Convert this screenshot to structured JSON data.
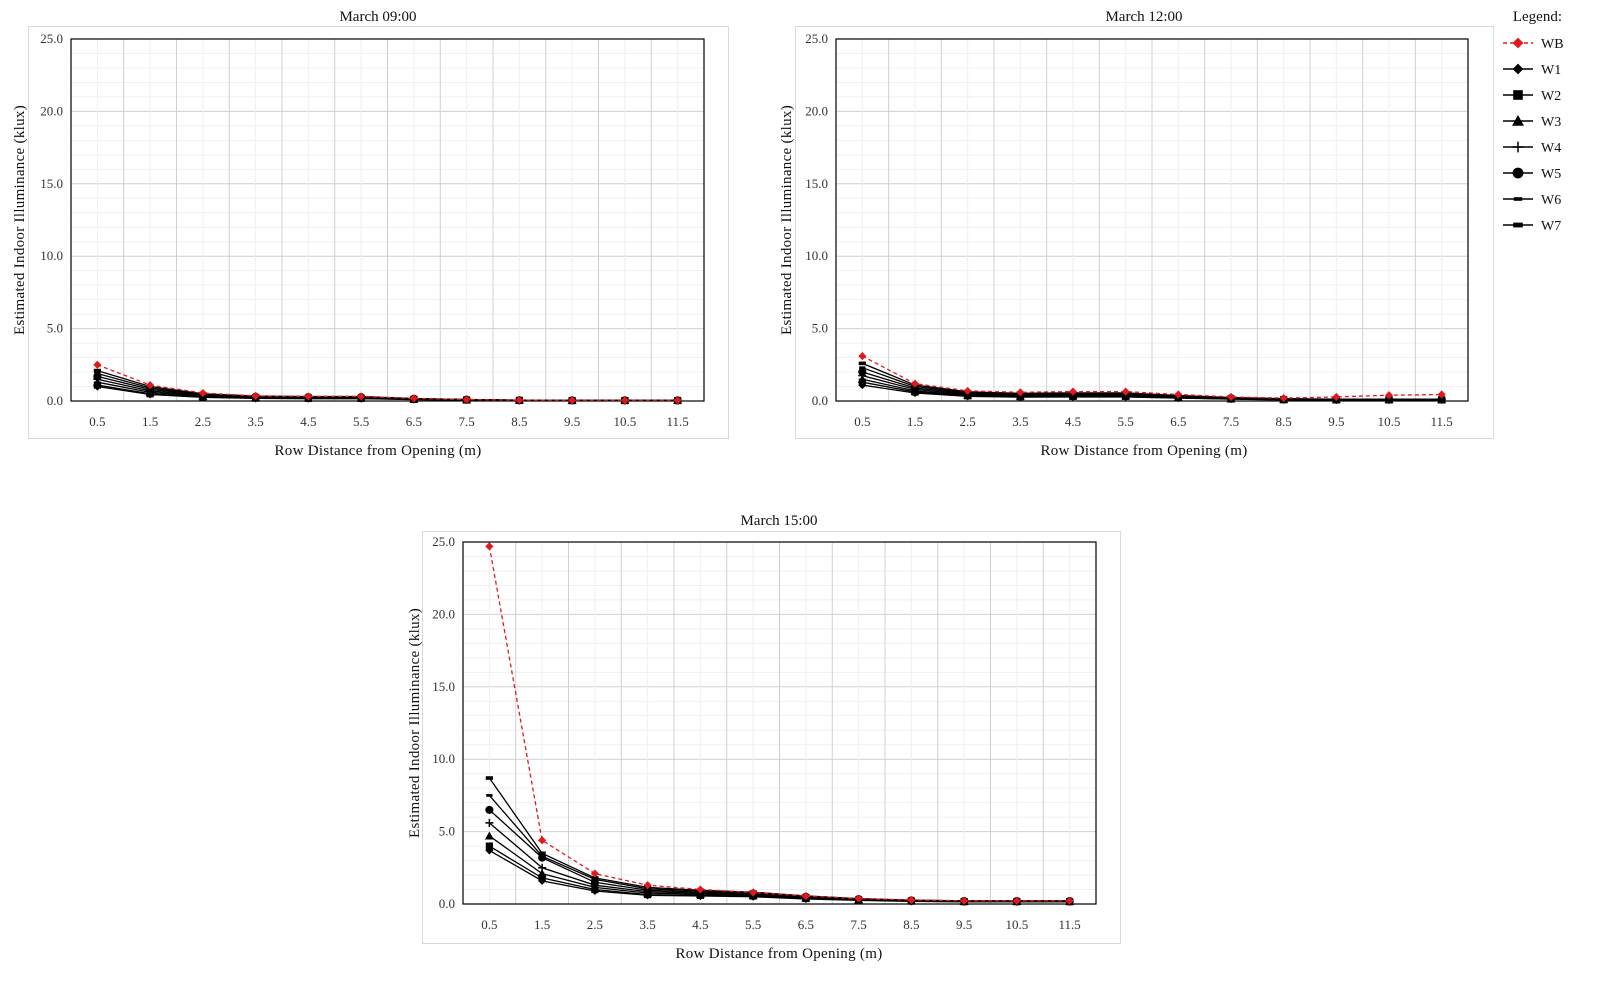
{
  "legend": {
    "title": "Legend:",
    "items": [
      {
        "name": "WB",
        "marker": "diamond",
        "color": "#e0191e",
        "dashed": true
      },
      {
        "name": "W1",
        "marker": "diamond",
        "color": "#000000",
        "dashed": false
      },
      {
        "name": "W2",
        "marker": "square",
        "color": "#000000",
        "dashed": false
      },
      {
        "name": "W3",
        "marker": "triangle",
        "color": "#000000",
        "dashed": false
      },
      {
        "name": "W4",
        "marker": "plus",
        "color": "#000000",
        "dashed": false
      },
      {
        "name": "W5",
        "marker": "circle",
        "color": "#000000",
        "dashed": false
      },
      {
        "name": "W6",
        "marker": "dash",
        "color": "#000000",
        "dashed": false
      },
      {
        "name": "W7",
        "marker": "smallbar",
        "color": "#000000",
        "dashed": false
      }
    ]
  },
  "chart_data": [
    {
      "type": "line",
      "title": "March 09:00",
      "xlabel": "Row Distance from Opening (m)",
      "ylabel": "Estimated Indoor Illuminance (klux)",
      "x": [
        0.5,
        1.5,
        2.5,
        3.5,
        4.5,
        5.5,
        6.5,
        7.5,
        8.5,
        9.5,
        10.5,
        11.5
      ],
      "x_ticks": [
        "0.5",
        "1.5",
        "2.5",
        "3.5",
        "4.5",
        "5.5",
        "6.5",
        "7.5",
        "8.5",
        "9.5",
        "10.5",
        "11.5"
      ],
      "y_ticks": [
        "0.0",
        "5.0",
        "10.0",
        "15.0",
        "20.0",
        "25.0"
      ],
      "ylim": [
        0,
        25
      ],
      "grid": true,
      "series": [
        {
          "name": "WB",
          "values": [
            2.5,
            1.1,
            0.55,
            0.35,
            0.32,
            0.32,
            0.18,
            0.1,
            0.06,
            0.05,
            0.05,
            0.05
          ]
        },
        {
          "name": "W1",
          "values": [
            1.0,
            0.45,
            0.25,
            0.18,
            0.16,
            0.16,
            0.1,
            0.06,
            0.04,
            0.03,
            0.03,
            0.03
          ]
        },
        {
          "name": "W2",
          "values": [
            1.1,
            0.5,
            0.27,
            0.2,
            0.18,
            0.18,
            0.11,
            0.07,
            0.04,
            0.03,
            0.03,
            0.03
          ]
        },
        {
          "name": "W3",
          "values": [
            1.3,
            0.6,
            0.32,
            0.23,
            0.21,
            0.21,
            0.13,
            0.08,
            0.05,
            0.04,
            0.04,
            0.04
          ]
        },
        {
          "name": "W4",
          "values": [
            1.5,
            0.7,
            0.37,
            0.26,
            0.24,
            0.24,
            0.14,
            0.09,
            0.05,
            0.04,
            0.04,
            0.04
          ]
        },
        {
          "name": "W5",
          "values": [
            1.7,
            0.8,
            0.42,
            0.29,
            0.27,
            0.27,
            0.15,
            0.09,
            0.05,
            0.04,
            0.04,
            0.04
          ]
        },
        {
          "name": "W6",
          "values": [
            1.9,
            0.9,
            0.47,
            0.32,
            0.29,
            0.29,
            0.16,
            0.1,
            0.06,
            0.05,
            0.05,
            0.05
          ]
        },
        {
          "name": "W7",
          "values": [
            2.1,
            1.0,
            0.5,
            0.34,
            0.31,
            0.31,
            0.17,
            0.1,
            0.06,
            0.05,
            0.05,
            0.05
          ]
        }
      ]
    },
    {
      "type": "line",
      "title": "March 12:00",
      "xlabel": "Row Distance from Opening (m)",
      "ylabel": "Estimated Indoor Illuminance (klux)",
      "x": [
        0.5,
        1.5,
        2.5,
        3.5,
        4.5,
        5.5,
        6.5,
        7.5,
        8.5,
        9.5,
        10.5,
        11.5
      ],
      "x_ticks": [
        "0.5",
        "1.5",
        "2.5",
        "3.5",
        "4.5",
        "5.5",
        "6.5",
        "7.5",
        "8.5",
        "9.5",
        "10.5",
        "11.5"
      ],
      "y_ticks": [
        "0.0",
        "5.0",
        "10.0",
        "15.0",
        "20.0",
        "25.0"
      ],
      "ylim": [
        0,
        25
      ],
      "grid": true,
      "series": [
        {
          "name": "WB",
          "values": [
            3.1,
            1.2,
            0.7,
            0.6,
            0.65,
            0.65,
            0.45,
            0.28,
            0.2,
            0.28,
            0.4,
            0.45
          ]
        },
        {
          "name": "W1",
          "values": [
            1.1,
            0.55,
            0.32,
            0.27,
            0.28,
            0.28,
            0.2,
            0.13,
            0.08,
            0.07,
            0.07,
            0.07
          ]
        },
        {
          "name": "W2",
          "values": [
            1.3,
            0.62,
            0.36,
            0.3,
            0.32,
            0.32,
            0.22,
            0.14,
            0.09,
            0.08,
            0.08,
            0.08
          ]
        },
        {
          "name": "W3",
          "values": [
            1.5,
            0.7,
            0.4,
            0.34,
            0.36,
            0.36,
            0.25,
            0.16,
            0.1,
            0.09,
            0.09,
            0.09
          ]
        },
        {
          "name": "W4",
          "values": [
            1.75,
            0.8,
            0.46,
            0.38,
            0.4,
            0.4,
            0.28,
            0.18,
            0.11,
            0.1,
            0.1,
            0.1
          ]
        },
        {
          "name": "W5",
          "values": [
            2.0,
            0.9,
            0.52,
            0.43,
            0.45,
            0.45,
            0.31,
            0.2,
            0.12,
            0.11,
            0.11,
            0.11
          ]
        },
        {
          "name": "W6",
          "values": [
            2.3,
            1.0,
            0.58,
            0.48,
            0.5,
            0.5,
            0.34,
            0.22,
            0.14,
            0.12,
            0.12,
            0.12
          ]
        },
        {
          "name": "W7",
          "values": [
            2.6,
            1.1,
            0.64,
            0.53,
            0.56,
            0.56,
            0.38,
            0.24,
            0.16,
            0.13,
            0.13,
            0.13
          ]
        }
      ]
    },
    {
      "type": "line",
      "title": "March 15:00",
      "xlabel": "Row Distance from Opening (m)",
      "ylabel": "Estimated Indoor Illuminance (klux)",
      "x": [
        0.5,
        1.5,
        2.5,
        3.5,
        4.5,
        5.5,
        6.5,
        7.5,
        8.5,
        9.5,
        10.5,
        11.5
      ],
      "x_ticks": [
        "0.5",
        "1.5",
        "2.5",
        "3.5",
        "4.5",
        "5.5",
        "6.5",
        "7.5",
        "8.5",
        "9.5",
        "10.5",
        "11.5"
      ],
      "y_ticks": [
        "0.0",
        "5.0",
        "10.0",
        "15.0",
        "20.0",
        "25.0"
      ],
      "ylim": [
        0,
        25
      ],
      "grid": true,
      "series": [
        {
          "name": "WB",
          "values": [
            24.7,
            4.4,
            2.1,
            1.3,
            1.0,
            0.8,
            0.55,
            0.38,
            0.28,
            0.22,
            0.22,
            0.22
          ]
        },
        {
          "name": "W1",
          "values": [
            3.7,
            1.6,
            0.9,
            0.6,
            0.55,
            0.5,
            0.35,
            0.25,
            0.18,
            0.15,
            0.15,
            0.15
          ]
        },
        {
          "name": "W2",
          "values": [
            4.0,
            1.8,
            1.0,
            0.65,
            0.6,
            0.55,
            0.38,
            0.27,
            0.2,
            0.16,
            0.16,
            0.16
          ]
        },
        {
          "name": "W3",
          "values": [
            4.7,
            2.1,
            1.15,
            0.75,
            0.68,
            0.6,
            0.42,
            0.3,
            0.22,
            0.18,
            0.18,
            0.18
          ]
        },
        {
          "name": "W4",
          "values": [
            5.6,
            2.5,
            1.3,
            0.85,
            0.75,
            0.65,
            0.46,
            0.32,
            0.24,
            0.19,
            0.19,
            0.19
          ]
        },
        {
          "name": "W5",
          "values": [
            6.5,
            3.2,
            1.5,
            0.95,
            0.82,
            0.72,
            0.5,
            0.34,
            0.25,
            0.2,
            0.2,
            0.2
          ]
        },
        {
          "name": "W6",
          "values": [
            7.5,
            3.3,
            1.7,
            1.05,
            0.9,
            0.78,
            0.54,
            0.36,
            0.26,
            0.21,
            0.21,
            0.21
          ]
        },
        {
          "name": "W7",
          "values": [
            8.7,
            3.5,
            1.8,
            1.15,
            0.95,
            0.82,
            0.56,
            0.37,
            0.27,
            0.22,
            0.22,
            0.22
          ]
        }
      ]
    }
  ]
}
